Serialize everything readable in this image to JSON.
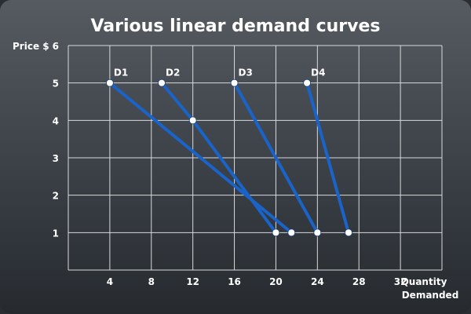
{
  "chart_data": {
    "type": "line",
    "title": "Various linear demand curves",
    "ylabel": "Price $",
    "xlabel_lines": [
      "Quantity",
      "Demanded"
    ],
    "xlim": [
      0,
      36
    ],
    "ylim": [
      0,
      6
    ],
    "xticks": [
      4,
      8,
      12,
      16,
      20,
      24,
      28,
      32
    ],
    "yticks": [
      1,
      2,
      3,
      4,
      5,
      6
    ],
    "grid": true,
    "line_color": "#1a63c8",
    "point_color": "#ffffff",
    "series": [
      {
        "name": "D1",
        "points": [
          [
            4,
            5
          ],
          [
            21.5,
            1
          ]
        ]
      },
      {
        "name": "D2",
        "points": [
          [
            9,
            5
          ],
          [
            12,
            4
          ],
          [
            20,
            1
          ]
        ]
      },
      {
        "name": "D3",
        "points": [
          [
            16,
            5
          ],
          [
            24,
            1
          ]
        ]
      },
      {
        "name": "D4",
        "points": [
          [
            23,
            5
          ],
          [
            27,
            1
          ]
        ]
      }
    ]
  }
}
